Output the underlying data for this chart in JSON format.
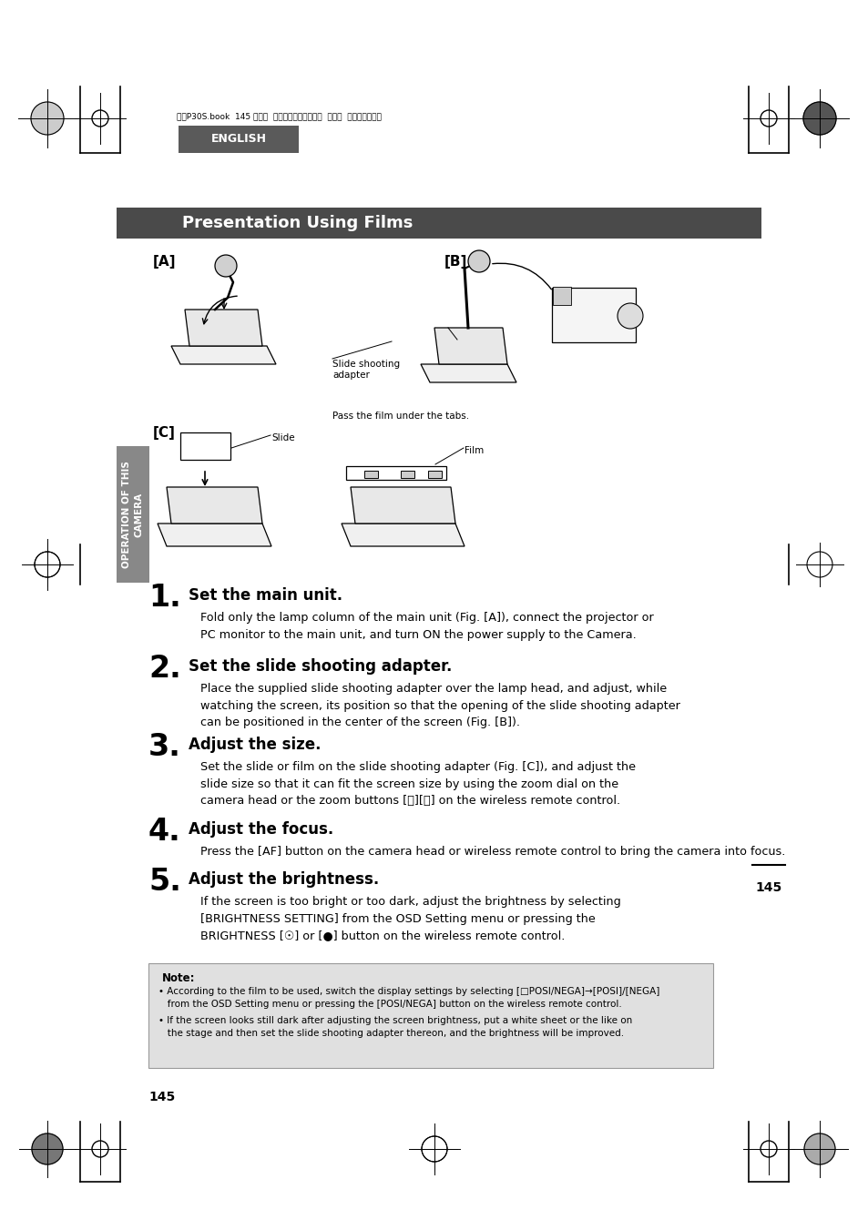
{
  "title": "Presentation Using Films",
  "title_bg": "#4a4a4a",
  "title_color": "#ffffff",
  "page_num": "145",
  "header_jp": "書画P30S.book  145 ページ  ２００８年１月２４日  木曜日  午後６時３８分",
  "english_label": "ENGLISH",
  "side_label_1": "OPERATION OF THIS",
  "side_label_2": "CAMERA",
  "figA_label": "[A]",
  "figB_label": "[B]",
  "figC_label": "[C]",
  "annot_slide_shoot": "Slide shooting\nadapter",
  "annot_film_tabs": "Pass the film under the tabs.",
  "annot_slide": "Slide",
  "annot_film": "Film",
  "step1_num": "1.",
  "step1_head": "Set the main unit.",
  "step1_body": "Fold only the lamp column of the main unit (Fig. [A]), connect the projector or\nPC monitor to the main unit, and turn ON the power supply to the Camera.",
  "step2_num": "2.",
  "step2_head": "Set the slide shooting adapter.",
  "step2_body": "Place the supplied slide shooting adapter over the lamp head, and adjust, while\nwatching the screen, its position so that the opening of the slide shooting adapter\ncan be positioned in the center of the screen (Fig. [B]).",
  "step3_num": "3.",
  "step3_head": "Adjust the size.",
  "step3_body": "Set the slide or film on the slide shooting adapter (Fig. [C]), and adjust the\nslide size so that it can fit the screen size by using the zoom dial on the\ncamera head or the zoom buttons [ⓙ][ⓙ] on the wireless remote control.",
  "step4_num": "4.",
  "step4_head": "Adjust the focus.",
  "step4_body": "Press the [AF] button on the camera head or wireless remote control to bring the camera into focus.",
  "step5_num": "5.",
  "step5_head": "Adjust the brightness.",
  "step5_body_1": "If the screen is too bright or too dark, adjust the brightness by selecting",
  "step5_body_2": "[BRIGHTNESS SETTING] from the OSD Setting menu or pressing the",
  "step5_body_3": "BRIGHTNESS [☉] or [●] button on the wireless remote control.",
  "note_title": "Note:",
  "note_line1a": "• According to the film to be used, switch the display settings by selecting [□POSI/NEGA]→[POSI]/[NEGA]",
  "note_line1b": "   from the OSD Setting menu or pressing the [POSI/NEGA] button on the wireless remote control.",
  "note_line2a": "• If the screen looks still dark after adjusting the screen brightness, put a white sheet or the like on",
  "note_line2b": "   the stage and then set the slide shooting adapter thereon, and the brightness will be improved.",
  "bg": "#ffffff",
  "note_bg": "#e0e0e0",
  "title_bar_bg": "#4a4a4a",
  "side_bar_bg": "#888888",
  "eng_bg": "#5a5a5a"
}
